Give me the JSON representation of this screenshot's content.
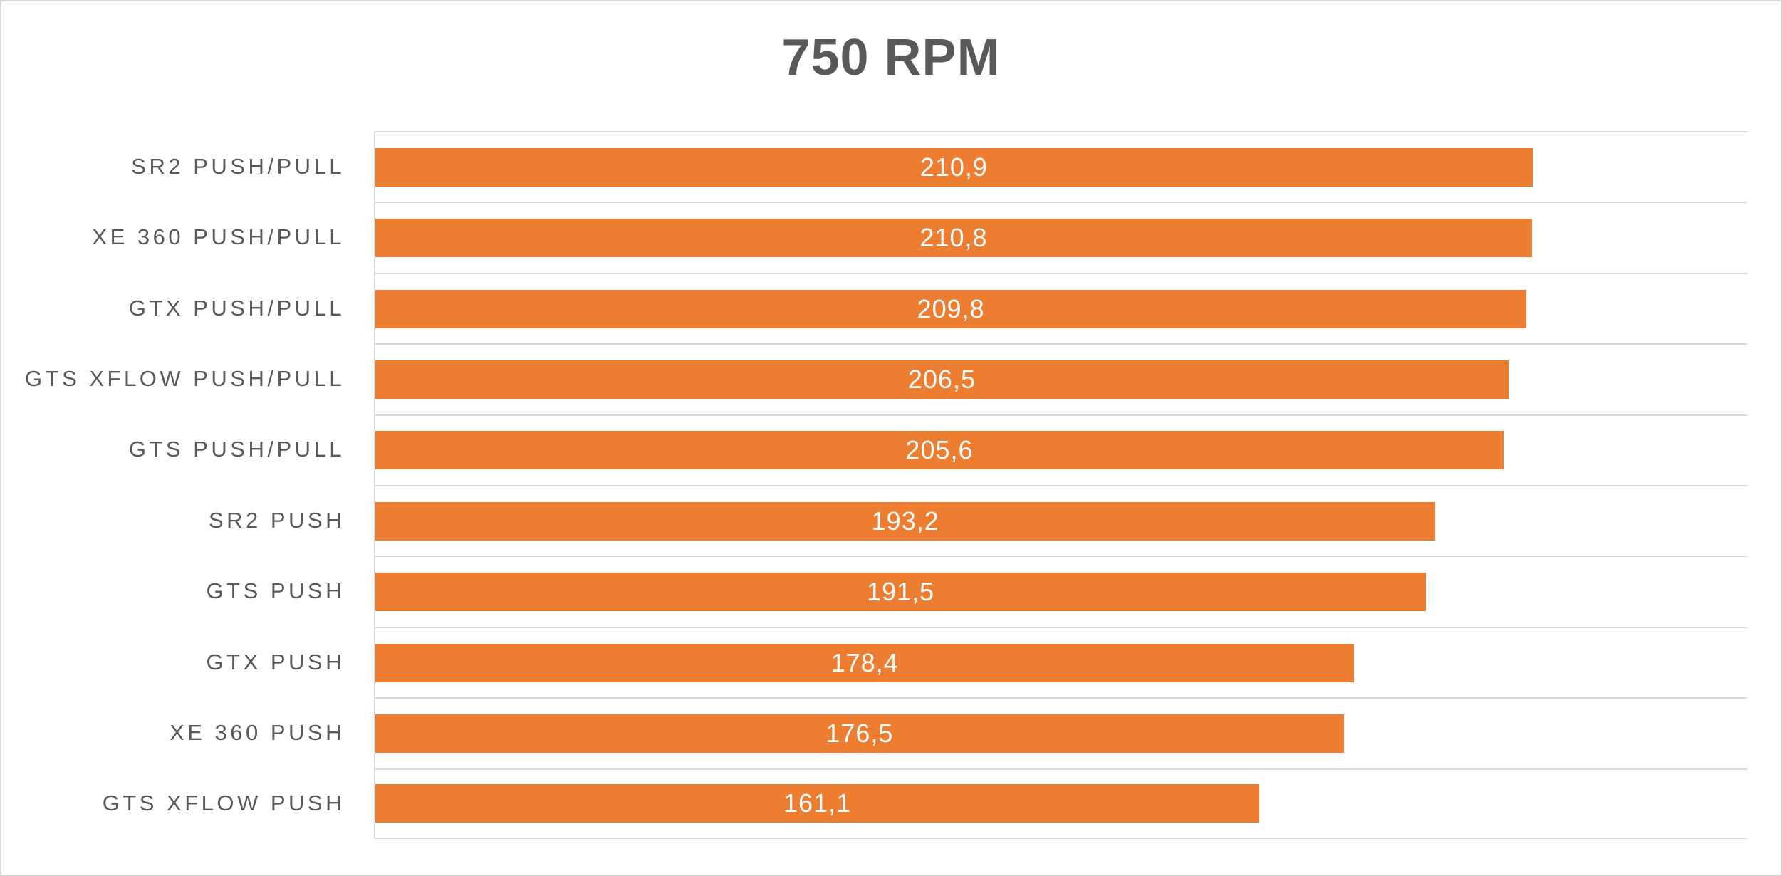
{
  "title": "750 RPM",
  "colors": {
    "bar": "#ED7D31",
    "grid": "#D9D9D9",
    "border": "#D9D9D9",
    "background": "#FFFFFF",
    "title_text": "#595959",
    "label_text": "#595959",
    "value_text": "#FFFFFF"
  },
  "chart_data": {
    "type": "bar",
    "orientation": "horizontal",
    "title": "750 RPM",
    "categories": [
      "SR2 PUSH/PULL",
      "XE 360 PUSH/PULL",
      "GTX PUSH/PULL",
      "GTS XFLOW PUSH/PULL",
      "GTS PUSH/PULL",
      "SR2 PUSH",
      "GTS PUSH",
      "GTX PUSH",
      "XE 360 PUSH",
      "GTS XFLOW PUSH"
    ],
    "values": [
      210.9,
      210.8,
      209.8,
      206.5,
      205.6,
      193.2,
      191.5,
      178.4,
      176.5,
      161.1
    ],
    "value_labels": [
      "210,9",
      "210,8",
      "209,8",
      "206,5",
      "205,6",
      "193,2",
      "191,5",
      "178,4",
      "176,5",
      "161,1"
    ],
    "xlabel": "",
    "ylabel": "",
    "xlim": [
      0,
      250
    ],
    "data_label_position": "center",
    "gridlines": "category-boundaries-only",
    "legend": "none"
  }
}
